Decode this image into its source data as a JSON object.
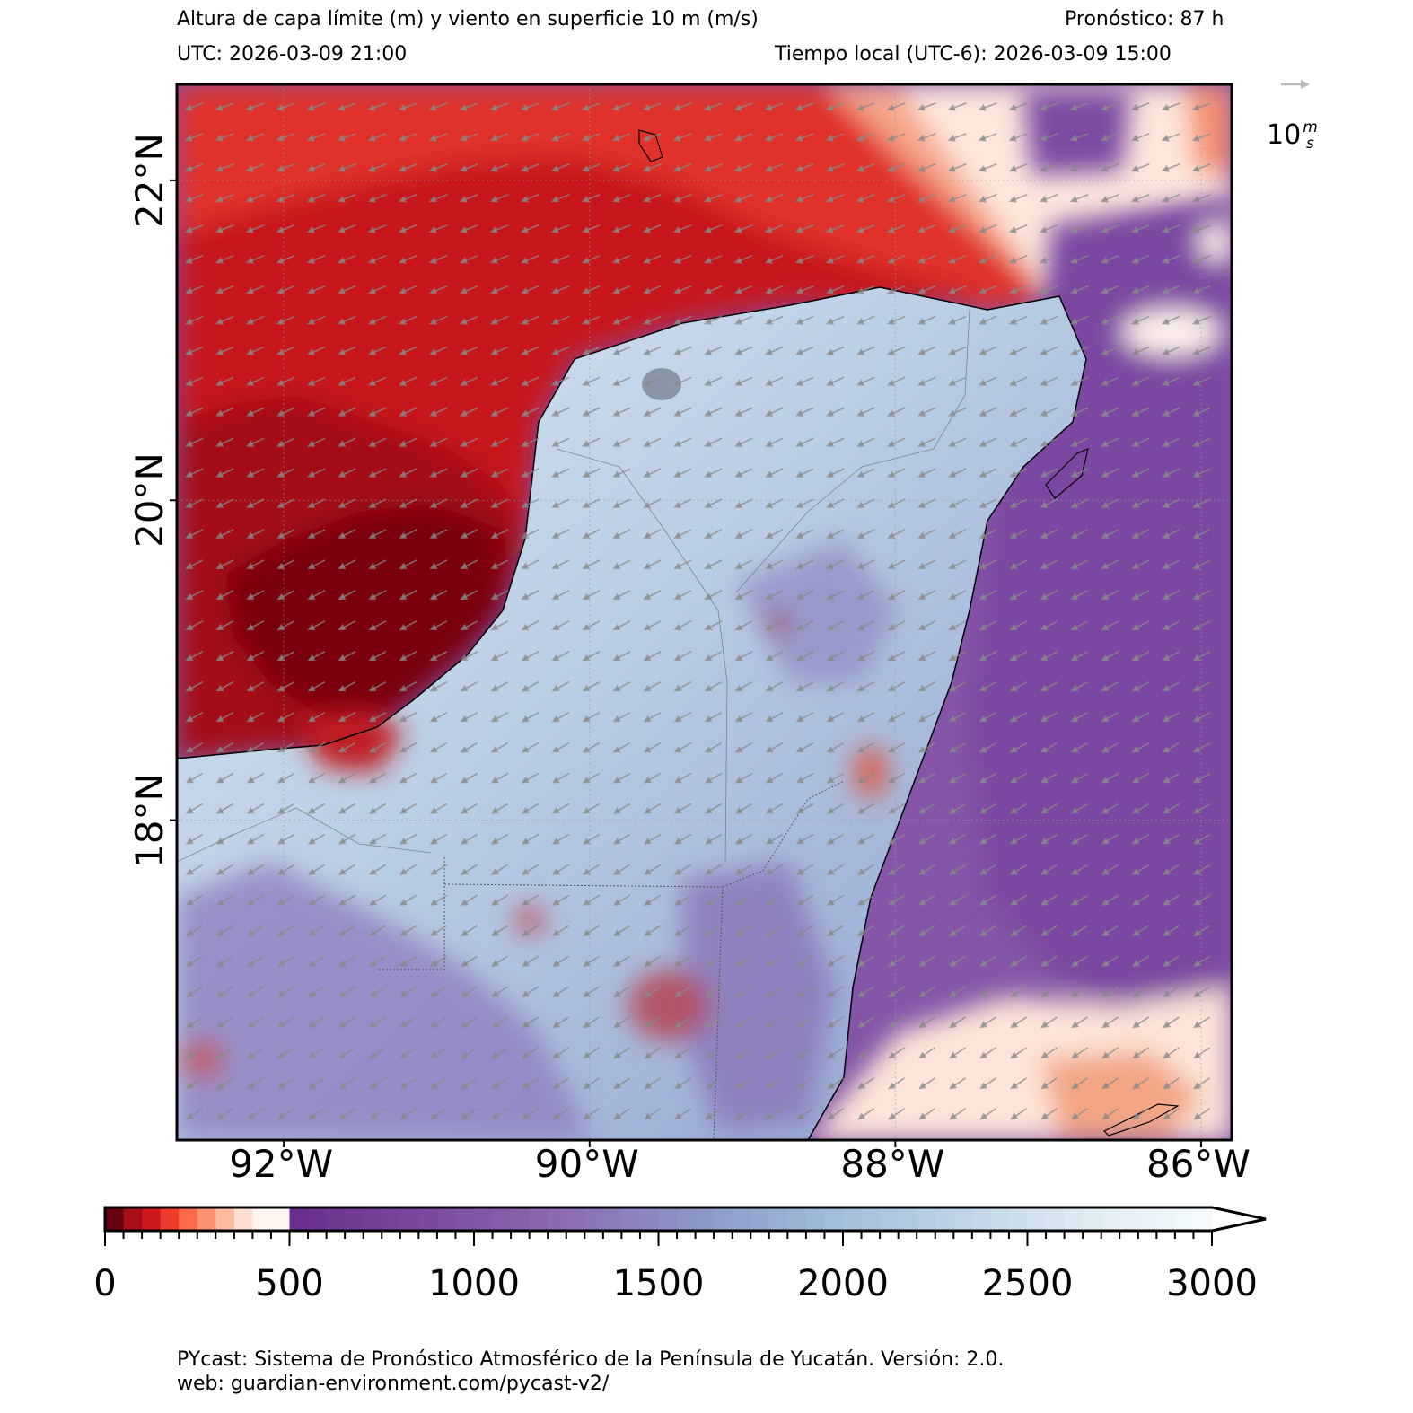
{
  "header": {
    "title": "Altura de capa límite (m) y viento en superficie 10 m (m/s)",
    "forecast": "Pronóstico: 87 h",
    "utc": "UTC:  2026-03-09 21:00",
    "local": "Tiempo local (UTC-6): 2026-03-09 15:00"
  },
  "map": {
    "lon_range": [
      -92.7,
      -85.8
    ],
    "lat_range": [
      16.0,
      22.6
    ],
    "lon_ticks": [
      {
        "value": -92,
        "label": "92°W"
      },
      {
        "value": -90,
        "label": "90°W"
      },
      {
        "value": -88,
        "label": "88°W"
      },
      {
        "value": -86,
        "label": "86°W"
      }
    ],
    "lat_ticks": [
      {
        "value": 22,
        "label": "22°N"
      },
      {
        "value": 20,
        "label": "20°N"
      },
      {
        "value": 18,
        "label": "18°N"
      }
    ],
    "gridlines": true
  },
  "wind_key": {
    "value": "10",
    "unit_num": "m",
    "unit_den": "s"
  },
  "colorbar": {
    "min": 0,
    "max": 3000,
    "extend": "max",
    "tick_labels": [
      "0",
      "500",
      "1000",
      "1500",
      "2000",
      "2500",
      "3000"
    ],
    "ticks": [
      0,
      500,
      1000,
      1500,
      2000,
      2500,
      3000
    ],
    "minor_step": 50,
    "colors_low": [
      "#67000d",
      "#a50f15",
      "#cb181d",
      "#ef3b2c",
      "#fb6a4a",
      "#fc9272",
      "#fcbba1",
      "#fee0d2",
      "#fff5f0"
    ],
    "colors_high": [
      "#6a2f8e",
      "#7c4a9e",
      "#8c6bb1",
      "#8c96c6",
      "#9ebcda",
      "#bfd3e6",
      "#e0ecf4",
      "#f7fcfd"
    ]
  },
  "footer": {
    "line1": "PYcast: Sistema de Pronóstico Atmosférico de la Península de Yucatán. Versión: 2.0.",
    "line2": "web: guardian-environment.com/pycast-v2/"
  }
}
